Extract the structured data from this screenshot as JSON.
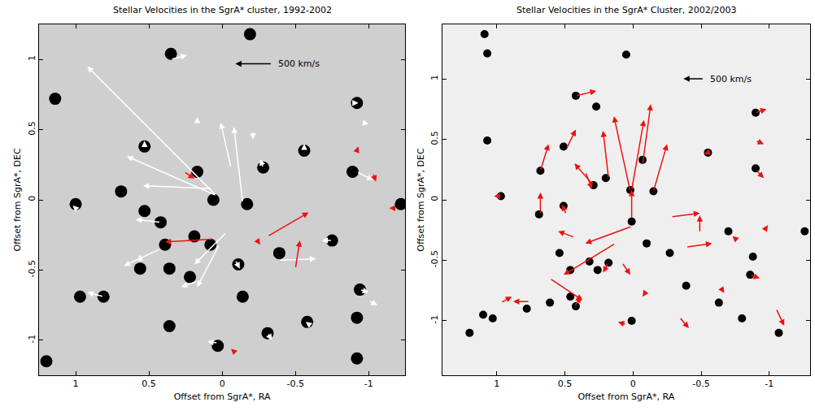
{
  "chart_data": [
    {
      "type": "scatter",
      "title": "Stellar Velocities in the SgrA* cluster, 1992-2002",
      "x_label": "Offset from SgrA*, RA",
      "y_label": "Offset from SgrA*, DEC",
      "xlim": [
        1.25,
        -1.25
      ],
      "ylim": [
        -1.25,
        1.25
      ],
      "xticks": [
        1,
        0.5,
        0,
        -0.5,
        -1
      ],
      "yticks": [
        -1,
        -0.5,
        0,
        0.5,
        1
      ],
      "grid": false,
      "stars": {
        "marker": "circle",
        "color": "#000000",
        "x": [
          0.35,
          0.53,
          0.17,
          -0.28,
          -0.56,
          -0.89,
          -0.92,
          -1.22,
          1.0,
          0.69,
          0.53,
          0.06,
          -0.17,
          0.39,
          0.19,
          0.08,
          0.22,
          0.36,
          0.56,
          -0.11,
          -0.75,
          -0.39,
          0.97,
          0.36,
          -0.14,
          -0.58,
          -0.92,
          0.03,
          -0.31,
          -0.92,
          1.14,
          -0.19,
          1.2,
          0.81,
          -0.94,
          0.42
        ],
        "y": [
          1.04,
          0.38,
          0.2,
          0.23,
          0.35,
          0.2,
          0.69,
          -0.03,
          -0.03,
          0.06,
          -0.08,
          0.0,
          -0.03,
          -0.32,
          -0.26,
          -0.32,
          -0.55,
          -0.49,
          -0.49,
          -0.46,
          -0.29,
          -0.38,
          -0.69,
          -0.9,
          -0.69,
          -0.87,
          -0.84,
          -1.04,
          -0.95,
          -1.13,
          0.72,
          1.18,
          -1.15,
          -0.69,
          -0.64,
          -0.16
        ]
      },
      "arrows": [
        {
          "color": "#ffffff",
          "x": [
            0.04,
            0.04,
            0.07,
            -0.14,
            -0.06,
            0.17,
            -0.21,
            -0.28,
            -0.56,
            -0.89,
            -0.92,
            0.35,
            0.53,
            0.42,
            -0.03,
            0.02,
            0.42,
            0.17,
            -0.09,
            -0.39,
            0.81,
            0.56,
            -0.61,
            -0.31,
            0.03,
            -0.94,
            -1.0,
            -0.75,
            -0.96,
            1.0
          ],
          "y": [
            0.03,
            0.03,
            0.08,
            -0.02,
            0.23,
            0.55,
            0.49,
            0.23,
            0.35,
            0.69,
            0.2,
            1.0,
            0.38,
            -0.16,
            -0.23,
            -0.32,
            -0.35,
            -0.58,
            -0.43,
            -0.43,
            -0.69,
            -0.43,
            -0.9,
            -0.95,
            -1.02,
            -0.64,
            -0.72,
            -0.29,
            0.55,
            -0.06
          ],
          "dx": [
            0.88,
            0.61,
            0.47,
            0.06,
            0.07,
            0,
            0,
            0.02,
            0,
            -0.04,
            -0.11,
            -0.11,
            0,
            0.17,
            0.22,
            0.15,
            0.25,
            0.11,
            -0.03,
            -0.25,
            0.11,
            0,
            0.04,
            -0.03,
            0.07,
            -0.06,
            -0.06,
            0.07,
            -0.04,
            0.02
          ],
          "dy": [
            0.92,
            0.28,
            0.02,
            0.54,
            0.32,
            0.04,
            -0.06,
            0.06,
            0.05,
            0,
            -0.06,
            0.03,
            0.04,
            0.02,
            -0.23,
            -0.3,
            -0.12,
            -0.04,
            -0.06,
            0.01,
            0.03,
            0.04,
            0.03,
            -0.05,
            0.01,
            -0.02,
            -0.03,
            0,
            -0.01,
            0.02
          ]
        },
        {
          "color": "#ee1111",
          "x": [
            0.26,
            -0.31,
            0.06,
            -0.5,
            -0.24,
            -0.92,
            -1.03,
            -1.17,
            -0.08
          ],
          "y": [
            0.2,
            -0.26,
            -0.28,
            -0.49,
            -0.29,
            0.35,
            0.19,
            -0.06,
            -1.08
          ],
          "dx": [
            -0.07,
            -0.28,
            0.33,
            -0.03,
            -0.02,
            -0.01,
            -0.02,
            0.03,
            0.02
          ],
          "dy": [
            -0.05,
            0.17,
            -0.02,
            0.2,
            -0.03,
            0.03,
            -0.06,
            0,
            0.02
          ]
        }
      ],
      "scale_arrow": {
        "x": -0.34,
        "y": 0.97,
        "dx": 0.25,
        "dy": 0,
        "label": "500 km/s",
        "color": "#000000"
      }
    },
    {
      "type": "scatter",
      "title": "Stellar Velocities in the SgrA* Cluster, 2002/2003",
      "x_label": "Offset from SgrA*, RA",
      "y_label": "Offset from SgrA*, DEC",
      "xlim": [
        1.4,
        -1.3
      ],
      "ylim": [
        -1.45,
        1.45
      ],
      "xticks": [
        1,
        0.5,
        0,
        -0.5,
        -1
      ],
      "yticks": [
        -1,
        -0.5,
        0,
        0.5,
        1
      ],
      "grid": false,
      "stars": {
        "marker": "circle",
        "color": "#000000",
        "x": [
          0.05,
          1.09,
          1.07,
          1.07,
          0.97,
          0.42,
          0.27,
          0.69,
          0.51,
          0.51,
          0.29,
          0.2,
          0.02,
          -0.07,
          -0.15,
          0.01,
          -0.1,
          -0.27,
          0.18,
          0.26,
          0.32,
          0.54,
          0.46,
          0.46,
          0.42,
          0.61,
          0.78,
          1.03,
          0.01,
          -0.39,
          -0.63,
          -0.8,
          -1.07,
          -0.7,
          -0.88,
          -0.86,
          -0.9,
          -0.9,
          -0.55,
          -1.26,
          0.68,
          1.1,
          1.2
        ],
        "y": [
          1.2,
          1.37,
          1.21,
          0.49,
          0.03,
          0.86,
          0.77,
          -0.12,
          0.44,
          -0.05,
          0.12,
          0.18,
          0.08,
          0.33,
          0.07,
          -0.18,
          -0.36,
          -0.44,
          -0.52,
          -0.58,
          -0.51,
          -0.44,
          -0.58,
          -0.8,
          -0.88,
          -0.85,
          -0.9,
          -0.98,
          -1.0,
          -0.71,
          -0.85,
          -0.98,
          -1.1,
          -0.26,
          -0.47,
          -0.62,
          0.26,
          0.72,
          0.39,
          -0.26,
          0.24,
          -0.95,
          -1.1
        ]
      },
      "arrows": [
        {
          "color": "#ee1111",
          "x": [
            0.02,
            -0.07,
            0.01,
            -0.15,
            0.29,
            0.18,
            0.01,
            0.49,
            0.42,
            0.13,
            0.01,
            0.61,
            -0.28,
            -0.49,
            -0.39,
            -0.34,
            -0.9,
            -0.9,
            -0.55,
            -1.05,
            0.68,
            0.68,
            0.97,
            0.49,
            0.43,
            0.76,
            0.43,
            0.08,
            -0.1,
            0.05,
            -0.76,
            -0.86,
            -0.9,
            -0.96,
            -0.64,
            0.35,
            0.18,
            0.97
          ],
          "y": [
            0.07,
            0.29,
            0.08,
            0.07,
            0.12,
            0.18,
            -0.16,
            0.42,
            0.86,
            -0.36,
            -0.22,
            -0.65,
            -0.14,
            -0.27,
            -0.39,
            -0.97,
            0.25,
            0.72,
            0.39,
            -0.9,
            0.24,
            -0.12,
            0.03,
            -0.12,
            -0.31,
            -0.84,
            -0.88,
            -0.52,
            -0.75,
            -1.03,
            -0.33,
            -0.62,
            0.49,
            -0.26,
            -0.72,
            0.23,
            -0.52,
            -0.85
          ],
          "dx": [
            0.12,
            -0.06,
            -0.09,
            -0.1,
            0.14,
            0.04,
            0,
            -0.07,
            -0.15,
            0.38,
            0.34,
            -0.24,
            -0.21,
            0,
            -0.19,
            -0.07,
            -0.06,
            -0.08,
            0.03,
            -0.06,
            -0.06,
            0,
            0.05,
            0.03,
            0.12,
            0.12,
            -0.05,
            -0.06,
            0.03,
            0.06,
            0.03,
            -0.07,
            -0.06,
            -0.03,
            -0.03,
            -0.05,
            0.04,
            -0.08
          ],
          "dy": [
            0.62,
            0.5,
            0.58,
            0.39,
            0.18,
            0.39,
            0.24,
            0.16,
            0.04,
            -0.26,
            -0.14,
            -0.18,
            0.03,
            0.14,
            0.03,
            -0.09,
            -0.07,
            0.03,
            -0.01,
            -0.14,
            0.22,
            0.18,
            0,
            0.08,
            0.05,
            0,
            0.08,
            -0.1,
            -0.05,
            0.02,
            0.03,
            -0.03,
            -0.03,
            0.05,
            -0.05,
            -0.14,
            -0.08,
            0.05
          ]
        }
      ],
      "scale_arrow": {
        "x": -0.52,
        "y": 1.0,
        "dx": 0.15,
        "dy": 0,
        "label": "500 km/s",
        "color": "#000000"
      }
    }
  ]
}
